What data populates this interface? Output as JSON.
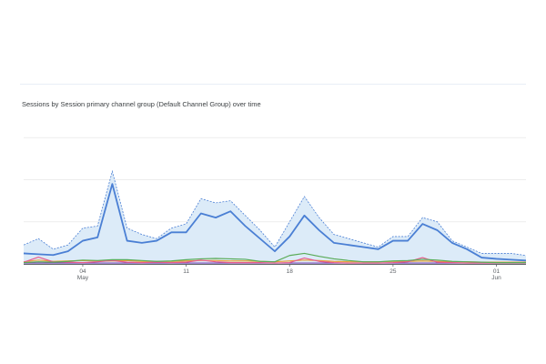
{
  "card": {
    "title": "Sessions by Session primary channel group (Default Channel Group) over time"
  },
  "chart_data": {
    "type": "line",
    "title": "Sessions by Session primary channel group (Default Channel Group) over time",
    "xlabel": "",
    "ylabel": "",
    "grid": true,
    "x": [
      "Apr 30",
      "May 1",
      "May 2",
      "May 3",
      "May 4",
      "May 5",
      "May 6",
      "May 7",
      "May 8",
      "May 9",
      "May 10",
      "May 11",
      "May 12",
      "May 13",
      "May 14",
      "May 15",
      "May 16",
      "May 17",
      "May 18",
      "May 19",
      "May 20",
      "May 21",
      "May 22",
      "May 23",
      "May 24",
      "May 25",
      "May 26",
      "May 27",
      "May 28",
      "May 29",
      "May 30",
      "May 31",
      "Jun 1",
      "Jun 2",
      "Jun 3"
    ],
    "x_ticks": [
      {
        "index": 4,
        "label": "04",
        "sublabel": "May"
      },
      {
        "index": 11,
        "label": "11",
        "sublabel": ""
      },
      {
        "index": 18,
        "label": "18",
        "sublabel": ""
      },
      {
        "index": 25,
        "label": "25",
        "sublabel": ""
      },
      {
        "index": 32,
        "label": "01",
        "sublabel": "Jun"
      }
    ],
    "ylim": [
      0,
      32
    ],
    "y_gridlines": [
      0,
      10,
      20,
      30
    ],
    "band": {
      "upper": [
        4.5,
        6,
        3.5,
        4.5,
        8.5,
        9,
        22,
        8.5,
        7,
        6,
        8.5,
        9.5,
        15.5,
        14.5,
        15,
        11.5,
        8,
        4,
        10,
        16,
        11,
        7,
        6,
        5,
        4,
        6.5,
        6.5,
        11,
        10,
        5.5,
        4,
        2.5,
        2.5,
        2.5,
        2
      ]
    },
    "series": [
      {
        "color": "#4a7fd4",
        "values": [
          2.5,
          2.3,
          2.1,
          3,
          5.5,
          6.3,
          19,
          5.5,
          5,
          5.5,
          7.5,
          7.5,
          12,
          11,
          12.5,
          9,
          6,
          3,
          6.5,
          11.5,
          8,
          5,
          4.5,
          4,
          3.5,
          5.5,
          5.5,
          9.5,
          8,
          5,
          3.5,
          1.5,
          1.2,
          1,
          0.8
        ]
      },
      {
        "color": "#5aab57",
        "values": [
          0.3,
          0.5,
          0.4,
          0.6,
          0.9,
          0.8,
          1,
          1,
          0.8,
          0.6,
          0.7,
          1,
          1.2,
          1.3,
          1.2,
          1.1,
          0.6,
          0.5,
          2,
          2.5,
          1.8,
          1.2,
          0.8,
          0.5,
          0.5,
          0.7,
          0.8,
          1.1,
          0.9,
          0.6,
          0.5,
          0.4,
          0.3,
          0.3,
          0.3
        ]
      },
      {
        "color": "#e85a8c",
        "values": [
          0.4,
          1.6,
          0.5,
          0.4,
          0.3,
          0.5,
          0.8,
          0.4,
          0.3,
          0.4,
          0.3,
          0.4,
          0.9,
          0.5,
          0.3,
          0.3,
          0.3,
          0.2,
          0.3,
          1.4,
          0.6,
          0.3,
          0.2,
          0.2,
          0.2,
          0.3,
          0.5,
          1.5,
          0.4,
          0.3,
          0.2,
          0.2,
          0.2,
          0.2,
          0.2
        ]
      },
      {
        "color": "#e8a23a",
        "values": [
          0.5,
          0.9,
          0.6,
          0.7,
          0.8,
          0.7,
          0.7,
          0.8,
          0.6,
          0.6,
          0.6,
          0.7,
          0.8,
          0.8,
          0.7,
          0.7,
          0.6,
          0.5,
          0.7,
          0.9,
          0.8,
          0.6,
          0.5,
          0.5,
          0.5,
          0.6,
          0.6,
          0.7,
          0.6,
          0.5,
          0.5,
          0.4,
          0.4,
          0.4,
          0.4
        ]
      },
      {
        "color": "#7b4bb8",
        "values": [
          0.2,
          0.2,
          0.2,
          0.2,
          0.2,
          0.2,
          0.2,
          0.2,
          0.2,
          0.2,
          0.2,
          0.2,
          0.2,
          0.2,
          0.2,
          0.2,
          0.2,
          0.2,
          0.2,
          0.2,
          0.2,
          0.2,
          0.2,
          0.2,
          0.2,
          0.2,
          0.2,
          0.2,
          0.2,
          0.2,
          0.2,
          0.2,
          0.2,
          0.2,
          0.2
        ]
      }
    ],
    "colors": {
      "band_fill": "#dcebf8",
      "band_stroke": "#4a7fd4",
      "gridline": "#e6e6e6",
      "axis": "#5f6368",
      "tick_text": "#5f6368"
    }
  }
}
